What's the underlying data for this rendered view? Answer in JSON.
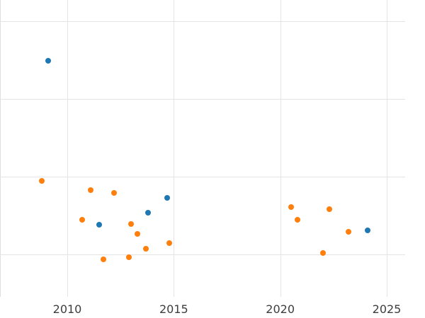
{
  "chart_data": {
    "type": "scatter",
    "title": "",
    "xlabel": "",
    "ylabel": "",
    "x_ticks": [
      2010,
      2015,
      2020,
      2025
    ],
    "y_gridline_values": [
      0,
      1,
      2,
      3
    ],
    "x_range": [
      2006.8,
      2026.8
    ],
    "y_range": [
      -0.55,
      3.3
    ],
    "grid": true,
    "legend_position": "none",
    "y_tick_labels_visible": false,
    "series": [
      {
        "name": "series-blue",
        "color": "#1f77b4",
        "points": [
          {
            "x": 2009.1,
            "y": 2.49
          },
          {
            "x": 2011.5,
            "y": 0.38
          },
          {
            "x": 2013.8,
            "y": 0.54
          },
          {
            "x": 2014.7,
            "y": 0.73
          },
          {
            "x": 2024.1,
            "y": 0.31
          }
        ]
      },
      {
        "name": "series-orange",
        "color": "#ff7f0e",
        "points": [
          {
            "x": 2008.8,
            "y": 0.95
          },
          {
            "x": 2010.7,
            "y": 0.45
          },
          {
            "x": 2011.1,
            "y": 0.83
          },
          {
            "x": 2011.7,
            "y": -0.06
          },
          {
            "x": 2012.2,
            "y": 0.79
          },
          {
            "x": 2012.9,
            "y": -0.04
          },
          {
            "x": 2013.0,
            "y": 0.39
          },
          {
            "x": 2013.3,
            "y": 0.26
          },
          {
            "x": 2013.7,
            "y": 0.07
          },
          {
            "x": 2014.8,
            "y": 0.15
          },
          {
            "x": 2020.5,
            "y": 0.61
          },
          {
            "x": 2020.8,
            "y": 0.45
          },
          {
            "x": 2022.0,
            "y": 0.02
          },
          {
            "x": 2022.3,
            "y": 0.58
          },
          {
            "x": 2023.2,
            "y": 0.29
          }
        ]
      }
    ]
  },
  "colors": {
    "background": "#ffffff",
    "gridline": "#e4e4e4",
    "tick_label": "#3d3d3d",
    "series_blue": "#1f77b4",
    "series_orange": "#ff7f0e"
  }
}
